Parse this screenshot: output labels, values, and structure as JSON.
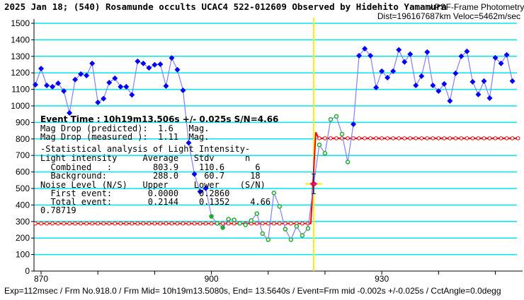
{
  "chart_data": {
    "type": "line",
    "title": "2025 Jan 18; (540) Rosamunde occults UCAC4 522-012609 Observed by Hidehito Yamamura",
    "subtitle": "/ PSF-Frame Photometry /",
    "subtitle2": "Dist=196167687km Veloc=5462m/sec",
    "footer": "Exp=112msec / Frm No.918.0 / Frm Mid= 10h19m13.5080s,  End= 13.5640s / Event=Frm mid -0.002s +/-0.025s / CctAngle=0.0degg",
    "xlabel": "",
    "ylabel": "",
    "xlim": [
      868.75,
      953.8
    ],
    "ylim": [
      0,
      1500
    ],
    "yticks": [
      0,
      100,
      200,
      300,
      400,
      500,
      600,
      700,
      800,
      900,
      1000,
      1100,
      1200,
      1300,
      1400,
      1500
    ],
    "xticks": [
      870,
      880,
      890,
      900,
      910,
      920,
      930,
      940,
      950
    ],
    "xtick_labels": [
      "870",
      "",
      "",
      "900",
      "",
      "",
      "930",
      "",
      ""
    ],
    "grid": "horizontal",
    "event_frame": 918,
    "x_start": 869,
    "values": [
      1128,
      1226,
      1124,
      1116,
      1137,
      1090,
      957,
      1159,
      1193,
      1184,
      1257,
      1021,
      1044,
      1141,
      1167,
      1116,
      1116,
      1067,
      1270,
      1257,
      1230,
      1249,
      1252,
      1120,
      1290,
      1219,
      1094,
      776,
      587,
      481,
      501,
      331,
      289,
      263,
      314,
      310,
      289,
      280,
      306,
      348,
      227,
      190,
      473,
      391,
      254,
      190,
      271,
      216,
      258,
      528,
      764,
      713,
      918,
      936,
      829,
      660,
      889,
      1304,
      1346,
      1304,
      1111,
      1210,
      1171,
      1210,
      1339,
      1266,
      1313,
      1124,
      1180,
      1326,
      1124,
      1090,
      1133,
      1030,
      1197,
      1300,
      1330,
      1146,
      1069,
      1150,
      1047,
      1291,
      1257,
      1309,
      1150
    ],
    "in_event_range": [
      900,
      925
    ],
    "model": {
      "background": 288.0,
      "combined": 803.9,
      "overshoot": 840,
      "rise_start": 917.5,
      "rise_end": 918.5
    },
    "colors": {
      "data_line": "#8080ff",
      "data_point": "#0000ff",
      "event_point": "#22aa33",
      "model": "#ff0000",
      "grid": "#00e5ee",
      "event_line": "#ffee00"
    }
  },
  "overlay": {
    "event_time": "Event Time : 10h19m13.506s  +/- 0.025s  S/N=4.66",
    "lines": [
      "Mag Drop (predicted):  1.6   Mag.",
      "Mag Drop (measured ):  1.11  Mag.",
      "-Statistical analysis of Light Intensity-",
      "Light intensity     Average   Stdv      n",
      "  Combined   :        803.9    110.6      6",
      "  Background:         288.0     60.7     18",
      "Noise Level (N/S)   Upper     Lower    (S/N)",
      "  First event:       0.0000    0.2860",
      "  Total event:       0.2144    0.1352    4.66",
      "0.78719"
    ]
  }
}
